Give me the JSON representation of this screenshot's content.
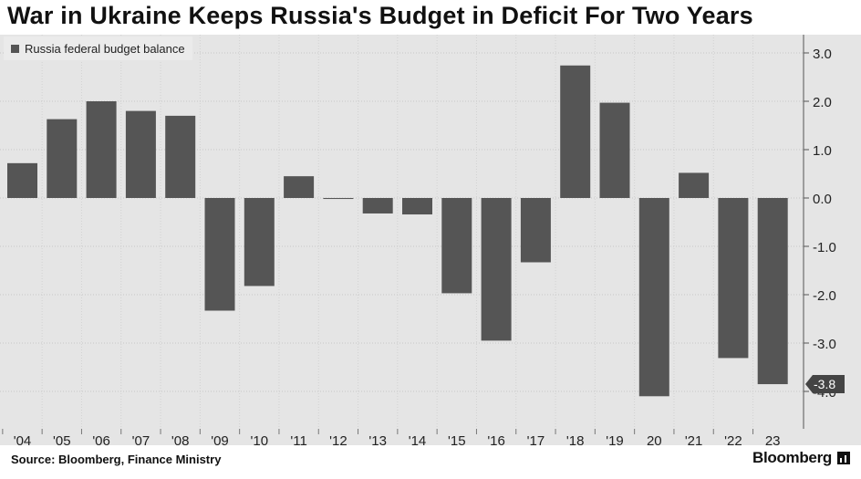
{
  "title": "War in Ukraine Keeps Russia's Budget in Deficit For Two Years",
  "legend": {
    "label": "Russia federal budget balance",
    "color": "#555555"
  },
  "source": "Source: Bloomberg, Finance Ministry",
  "brand": "Bloomberg",
  "chart_data": {
    "type": "bar",
    "categories": [
      "'04",
      "'05",
      "'06",
      "'07",
      "'08",
      "'09",
      "'10",
      "'11",
      "'12",
      "'13",
      "'14",
      "'15",
      "'16",
      "'17",
      "'18",
      "'19",
      "20",
      "'21",
      "'22",
      "23"
    ],
    "series": [
      {
        "name": "Russia federal budget balance",
        "values": [
          0.72,
          1.63,
          2.0,
          1.8,
          1.7,
          -2.33,
          -1.82,
          0.45,
          -0.02,
          -0.32,
          -0.34,
          -1.97,
          -2.95,
          -1.33,
          2.74,
          1.97,
          -4.1,
          0.52,
          -3.31,
          -3.85
        ]
      }
    ],
    "y_ticks": [
      "3.0",
      "2.0",
      "1.0",
      "0.0",
      "-1.0",
      "-2.0",
      "-3.0",
      "-4.0"
    ],
    "ylim": [
      -4.75,
      3.3
    ],
    "last_value_label": "-3.8",
    "bar_color": "#555555",
    "grid": "horizontal dotted",
    "y_axis_position": "right",
    "legend_position": "top-left"
  }
}
